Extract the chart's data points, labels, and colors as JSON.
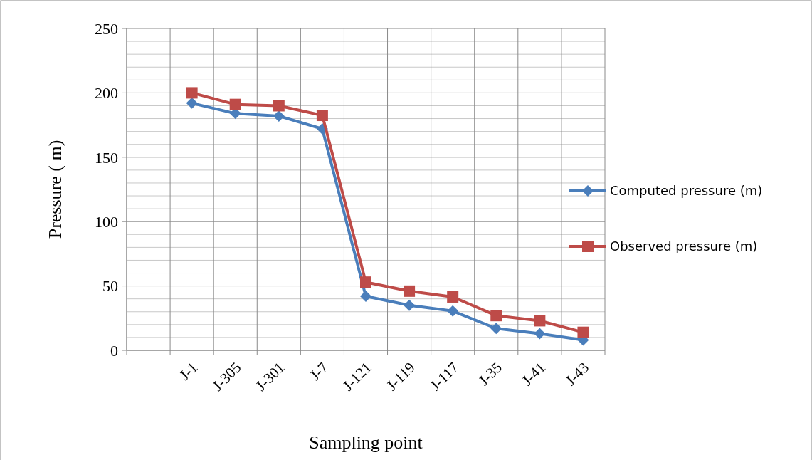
{
  "chart_data": {
    "type": "line",
    "xlabel": "Sampling point",
    "ylabel": "Pressure ( m)",
    "categories": [
      null,
      "J-1",
      "J-305",
      "J-301",
      "J-7",
      "J-121",
      "J-119",
      "J-117",
      "J-35",
      "J-41",
      "J-43"
    ],
    "series": [
      {
        "name": "Computed pressure (m)",
        "color": "#4a7ebb",
        "marker": "diamond",
        "values": [
          null,
          192,
          184,
          182,
          172,
          42,
          35,
          30.5,
          17,
          13,
          8
        ]
      },
      {
        "name": "Observed pressure (m)",
        "color": "#be4b48",
        "marker": "square",
        "values": [
          null,
          200,
          191,
          190,
          182.5,
          53,
          46,
          41.5,
          27,
          23,
          14
        ]
      }
    ],
    "ylim": [
      0,
      250
    ],
    "yticks": [
      0,
      50,
      100,
      150,
      200,
      250
    ],
    "grid": true,
    "legend": "right"
  }
}
